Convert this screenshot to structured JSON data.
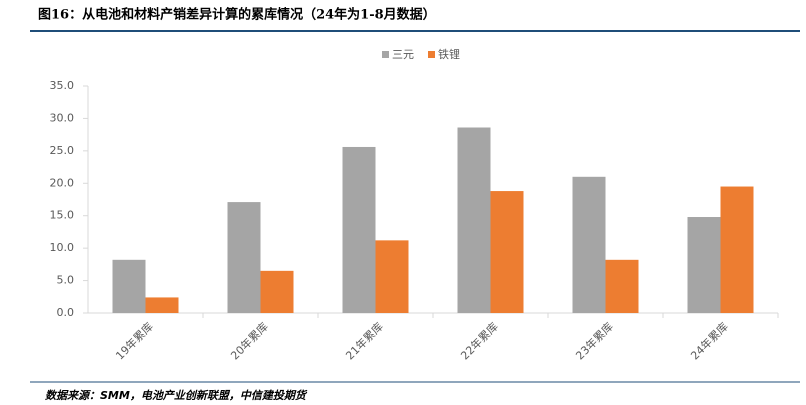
{
  "chart_data": {
    "type": "bar",
    "title": "图16：从电池和材料产销差异计算的累库情况（24年为1-8月数据）",
    "source": "数据来源：SMM，电池产业创新联盟，中信建投期货",
    "categories": [
      "19年累库",
      "20年累库",
      "21年累库",
      "22年累库",
      "23年累库",
      "24年累库"
    ],
    "series": [
      {
        "name": "三元",
        "color": "#a5a5a5",
        "values": [
          8.2,
          17.1,
          25.6,
          28.6,
          21.0,
          14.8
        ]
      },
      {
        "name": "铁锂",
        "color": "#ed7d31",
        "values": [
          2.4,
          6.5,
          11.2,
          18.8,
          8.2,
          19.5
        ]
      }
    ],
    "ylim": [
      0,
      35
    ],
    "yticks": [
      {
        "value": 0,
        "label": "0.0"
      },
      {
        "value": 5,
        "label": "5.0"
      },
      {
        "value": 10,
        "label": "10.0"
      },
      {
        "value": 15,
        "label": "15.0"
      },
      {
        "value": 20,
        "label": "20.0"
      },
      {
        "value": 25,
        "label": "25.0"
      },
      {
        "value": 30,
        "label": "30.0"
      },
      {
        "value": 35,
        "label": "35.0"
      }
    ],
    "grid": false,
    "legend": "top"
  }
}
